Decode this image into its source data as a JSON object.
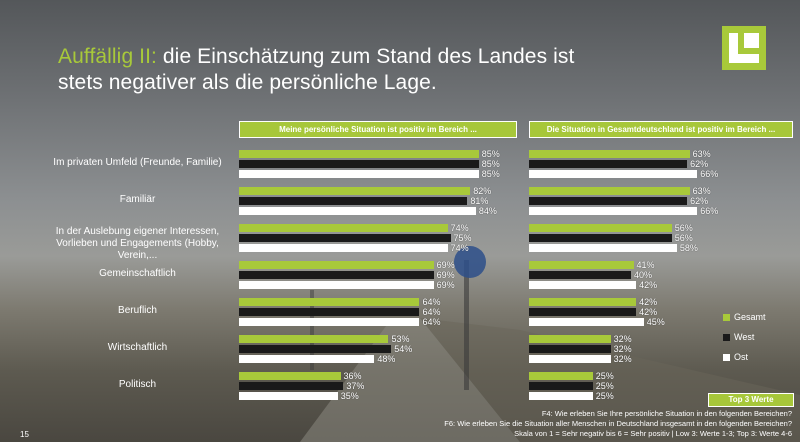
{
  "title": {
    "accent": "Auffällig II:",
    "line1": " die Einschätzung zum Stand des Landes ist",
    "line2": "stets negativer als die persönliche Lage."
  },
  "legend": {
    "gesamt": "Gesamt",
    "west": "West",
    "ost": "Ost"
  },
  "top3_label": "Top 3 Werte",
  "footnotes": [
    "F4: Wie erleben Sie Ihre persönliche Situation in den folgenden Bereichen?",
    "F6: Wie erleben Sie die Situation aller Menschen in Deutschland insgesamt in den folgenden Bereichen?",
    "Skala von 1 = Sehr negativ bis 6 = Sehr positiv | Low 3: Werte 1-3; Top 3: Werte 4-6"
  ],
  "page_number": "15",
  "colors": {
    "gesamt": "#a8c93a",
    "west": "#1a1a1a",
    "ost": "#ffffff"
  },
  "chart_data": [
    {
      "type": "bar",
      "orientation": "horizontal",
      "title": "Meine persönliche Situation ist positiv im Bereich ...",
      "unit": "%",
      "xlim": [
        0,
        100
      ],
      "categories": [
        "Im privaten Umfeld (Freunde, Familie)",
        "Familiär",
        "In der Auslebung eigener Interessen, Vorlieben und Engagements (Hobby, Verein,...",
        "Gemeinschaftlich",
        "Beruflich",
        "Wirtschaftlich",
        "Politisch"
      ],
      "series": [
        {
          "name": "Gesamt",
          "values": [
            85,
            82,
            74,
            69,
            64,
            53,
            36
          ]
        },
        {
          "name": "West",
          "values": [
            85,
            81,
            75,
            69,
            64,
            54,
            37
          ]
        },
        {
          "name": "Ost",
          "values": [
            85,
            84,
            74,
            69,
            64,
            48,
            35
          ]
        }
      ]
    },
    {
      "type": "bar",
      "orientation": "horizontal",
      "title": "Die Situation in Gesamtdeutschland ist positiv im Bereich ...",
      "unit": "%",
      "xlim": [
        0,
        100
      ],
      "categories": [
        "Im privaten Umfeld (Freunde, Familie)",
        "Familiär",
        "In der Auslebung eigener Interessen, Vorlieben und Engagements (Hobby, Verein,...",
        "Gemeinschaftlich",
        "Beruflich",
        "Wirtschaftlich",
        "Politisch"
      ],
      "series": [
        {
          "name": "Gesamt",
          "values": [
            63,
            63,
            56,
            41,
            42,
            32,
            25
          ]
        },
        {
          "name": "West",
          "values": [
            62,
            62,
            56,
            40,
            42,
            32,
            25
          ]
        },
        {
          "name": "Ost",
          "values": [
            66,
            66,
            58,
            42,
            45,
            32,
            25
          ]
        }
      ]
    }
  ]
}
